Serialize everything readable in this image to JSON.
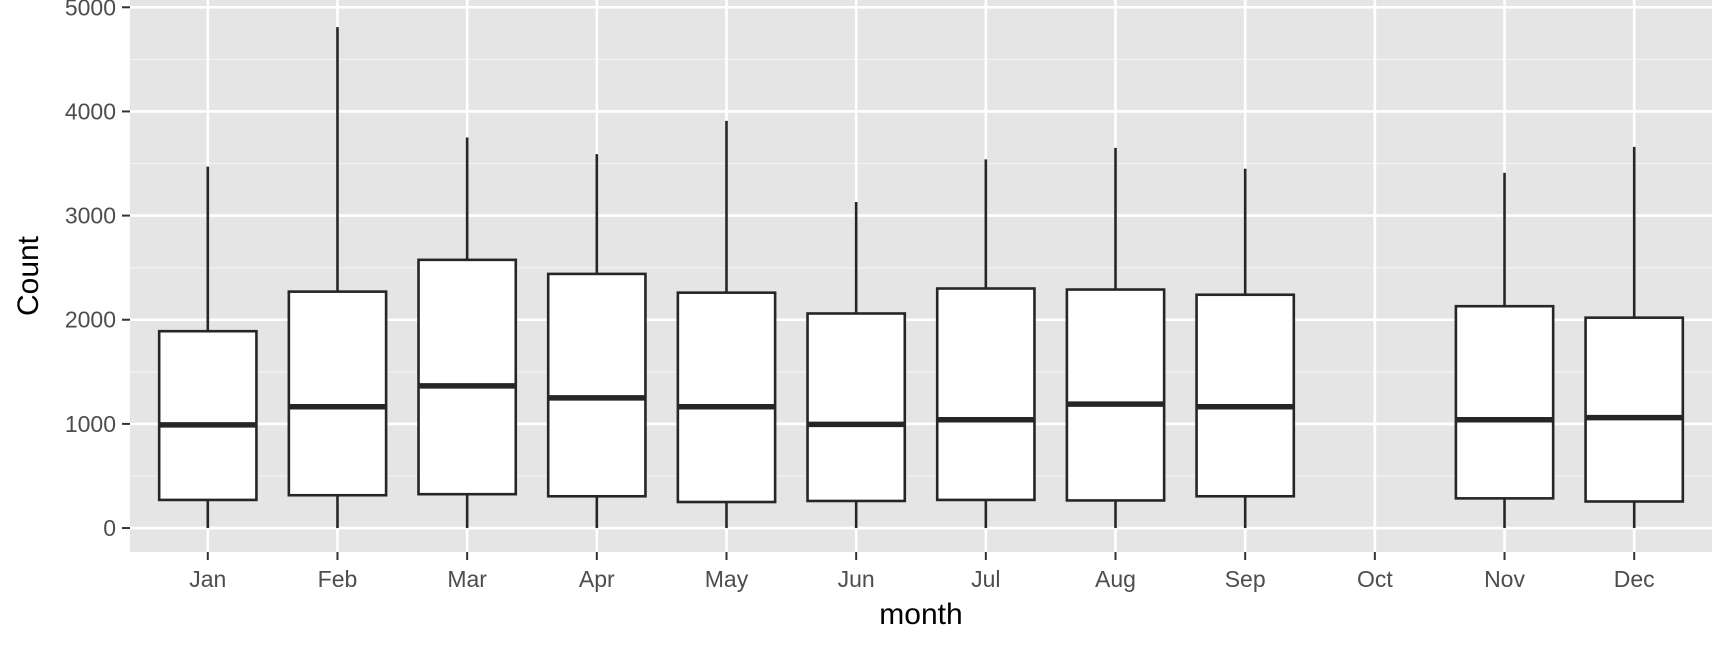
{
  "chart_data": {
    "type": "boxplot",
    "title": "",
    "xlabel": "month",
    "ylabel": "Count",
    "ylim": [
      -230,
      5070
    ],
    "yticks": [
      0,
      1000,
      2000,
      3000,
      4000,
      5000
    ],
    "grid": true,
    "legend": "none",
    "categories": [
      "Jan",
      "Feb",
      "Mar",
      "Apr",
      "May",
      "Jun",
      "Jul",
      "Aug",
      "Sep",
      "Oct",
      "Nov",
      "Dec"
    ],
    "boxes": [
      {
        "category": "Jan",
        "min": 0,
        "q1": 270,
        "median": 990,
        "q3": 1890,
        "max": 3470
      },
      {
        "category": "Feb",
        "min": 0,
        "q1": 315,
        "median": 1165,
        "q3": 2270,
        "max": 4810
      },
      {
        "category": "Mar",
        "min": 0,
        "q1": 325,
        "median": 1365,
        "q3": 2575,
        "max": 3750
      },
      {
        "category": "Apr",
        "min": 0,
        "q1": 305,
        "median": 1250,
        "q3": 2440,
        "max": 3590
      },
      {
        "category": "May",
        "min": 0,
        "q1": 250,
        "median": 1165,
        "q3": 2260,
        "max": 3910
      },
      {
        "category": "Jun",
        "min": 0,
        "q1": 260,
        "median": 995,
        "q3": 2060,
        "max": 3130
      },
      {
        "category": "Jul",
        "min": 0,
        "q1": 270,
        "median": 1040,
        "q3": 2300,
        "max": 3540
      },
      {
        "category": "Aug",
        "min": 0,
        "q1": 265,
        "median": 1190,
        "q3": 2290,
        "max": 3650
      },
      {
        "category": "Sep",
        "min": 0,
        "q1": 305,
        "median": 1165,
        "q3": 2240,
        "max": 3450
      },
      {
        "category": "Oct",
        "min": null,
        "q1": null,
        "median": null,
        "q3": null,
        "max": null
      },
      {
        "category": "Nov",
        "min": 0,
        "q1": 285,
        "median": 1040,
        "q3": 2130,
        "max": 3410
      },
      {
        "category": "Dec",
        "min": 0,
        "q1": 255,
        "median": 1060,
        "q3": 2020,
        "max": 3660
      }
    ],
    "colors": {
      "panel": "#e5e5e5",
      "grid_major": "#ffffff",
      "grid_minor": "#f2f2f2",
      "box_fill": "#ffffff",
      "box_stroke": "#262626",
      "tick": "#333333",
      "tick_label": "#4d4d4d"
    }
  }
}
